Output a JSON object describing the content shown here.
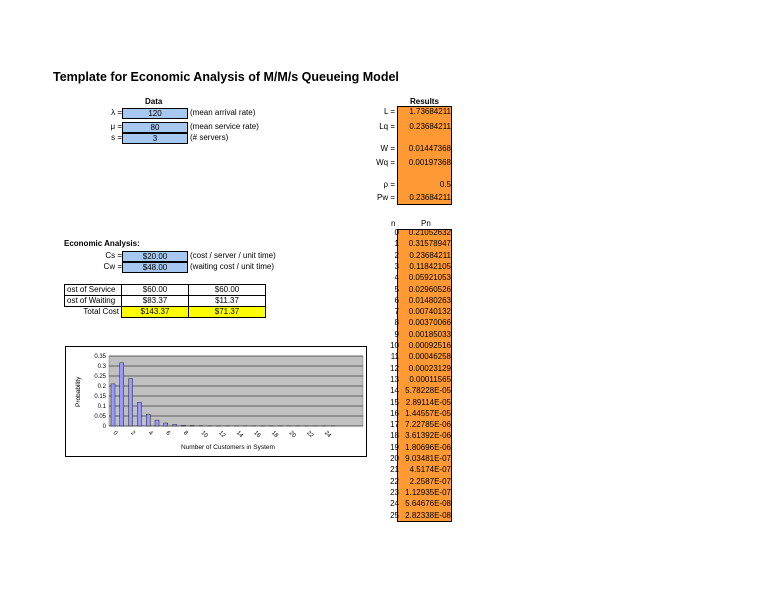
{
  "title": "Template for Economic Analysis of M/M/s Queueing Model",
  "data_section": {
    "header": "Data",
    "rows": [
      {
        "label": "λ =",
        "value": "120",
        "note": "(mean arrival rate)"
      },
      {
        "label": "μ =",
        "value": "80",
        "note": "(mean service rate)"
      },
      {
        "label": "s =",
        "value": "3",
        "note": "(# servers)"
      }
    ]
  },
  "results": {
    "header": "Results",
    "L": {
      "label": "L =",
      "value": "1.73684211"
    },
    "Lq": {
      "label": "Lq =",
      "value": "0.23684211"
    },
    "W": {
      "label": "W =",
      "value": "0.01447368"
    },
    "Wq": {
      "label": "Wq =",
      "value": "0.00197368"
    },
    "rho": {
      "label": "ρ =",
      "value": "0.5"
    },
    "Pw": {
      "label": "Pw =",
      "value": "0.23684211"
    }
  },
  "economic": {
    "header": "Economic Analysis:",
    "cs": {
      "label": "Cs =",
      "value": "$20.00",
      "note": "(cost / server / unit time)"
    },
    "cw": {
      "label": "Cw =",
      "value": "$48.00",
      "note": "(waiting cost / unit time)"
    },
    "table": [
      {
        "label": "ost of Service",
        "a": "$60.00",
        "b": "$60.00"
      },
      {
        "label": "ost of Waiting",
        "a": "$83.37",
        "b": "$11.37"
      },
      {
        "label": "Total Cost",
        "a": "$143.37",
        "b": "$71.37"
      }
    ]
  },
  "probabilities": {
    "n_header": "n",
    "p_header": "Pn",
    "rows": [
      {
        "n": "0",
        "p": "0.21052632"
      },
      {
        "n": "1",
        "p": "0.31578947"
      },
      {
        "n": "2",
        "p": "0.23684211"
      },
      {
        "n": "3",
        "p": "0.11842105"
      },
      {
        "n": "4",
        "p": "0.05921053"
      },
      {
        "n": "5",
        "p": "0.02960526"
      },
      {
        "n": "6",
        "p": "0.01480263"
      },
      {
        "n": "7",
        "p": "0.00740132"
      },
      {
        "n": "8",
        "p": "0.00370066"
      },
      {
        "n": "9",
        "p": "0.00185033"
      },
      {
        "n": "10",
        "p": "0.00092516"
      },
      {
        "n": "11",
        "p": "0.00046258"
      },
      {
        "n": "12",
        "p": "0.00023129"
      },
      {
        "n": "13",
        "p": "0.00011565"
      },
      {
        "n": "14",
        "p": "5.78228E-05"
      },
      {
        "n": "15",
        "p": "2.89114E-05"
      },
      {
        "n": "16",
        "p": "1.44557E-05"
      },
      {
        "n": "17",
        "p": "7.22785E-06"
      },
      {
        "n": "18",
        "p": "3.61392E-06"
      },
      {
        "n": "19",
        "p": "1.80696E-06"
      },
      {
        "n": "20",
        "p": "9.03481E-07"
      },
      {
        "n": "21",
        "p": "4.5174E-07"
      },
      {
        "n": "22",
        "p": "2.2587E-07"
      },
      {
        "n": "23",
        "p": "1.12935E-07"
      },
      {
        "n": "24",
        "p": "5.64676E-08"
      },
      {
        "n": "25",
        "p": "2.82338E-08"
      }
    ]
  },
  "chart_data": {
    "type": "bar",
    "xlabel": "Number of Customers in System",
    "ylabel": "Probability",
    "ylim": [
      0,
      0.35
    ],
    "yticks": [
      "0.35",
      "0.3",
      "0.25",
      "0.2",
      "0.15",
      "0.1",
      "0.05",
      "0"
    ],
    "xticks": [
      "0",
      "2",
      "4",
      "6",
      "8",
      "10",
      "12",
      "14",
      "16",
      "18",
      "20",
      "22",
      "24"
    ],
    "x": [
      0,
      1,
      2,
      3,
      4,
      5,
      6,
      7,
      8,
      9,
      10,
      11,
      12,
      13,
      14,
      15,
      16,
      17,
      18,
      19,
      20,
      21,
      22,
      23,
      24,
      25
    ],
    "values": [
      0.21052632,
      0.31578947,
      0.23684211,
      0.11842105,
      0.05921053,
      0.02960526,
      0.01480263,
      0.00740132,
      0.00370066,
      0.00185033,
      0.00092516,
      0.00046258,
      0.00023129,
      0.00011565,
      5.78228e-05,
      2.89114e-05,
      1.44557e-05,
      7.22785e-06,
      3.61392e-06,
      1.80696e-06,
      9.03481e-07,
      4.5174e-07,
      2.2587e-07,
      1.12935e-07,
      5.64676e-08,
      2.82338e-08
    ],
    "grid": true,
    "colors": {
      "plot_bg": "#c0c0c0",
      "bar": "#9999ff"
    }
  }
}
